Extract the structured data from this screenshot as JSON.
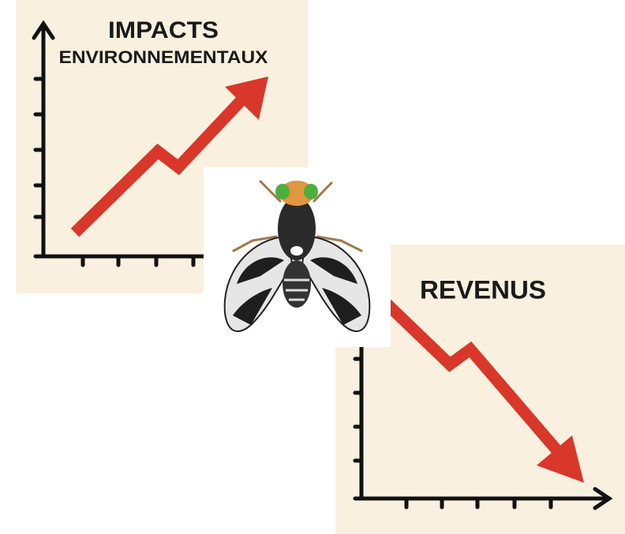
{
  "panels": [
    {
      "title": "IMPACTS",
      "subtitle": "ENVIRONNEMENTAUX"
    },
    {
      "title": "REVENUS"
    }
  ]
}
